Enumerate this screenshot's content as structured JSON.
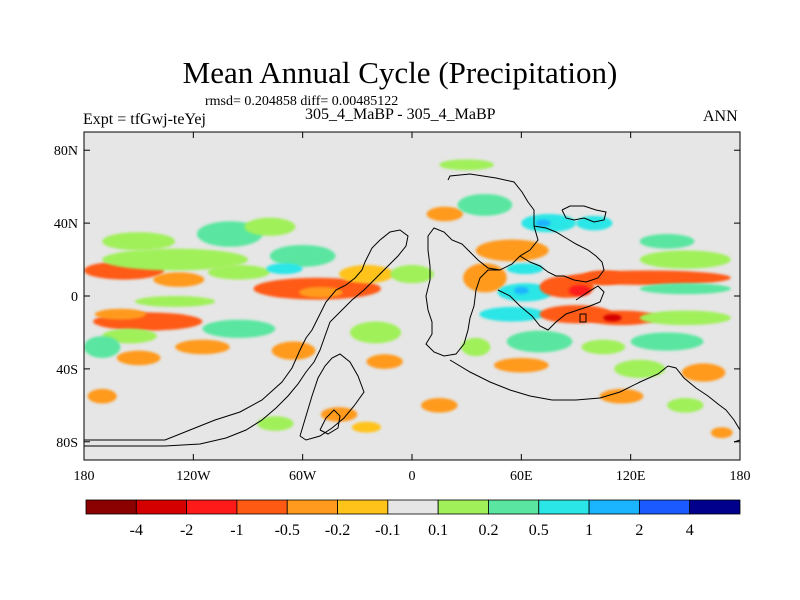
{
  "header": {
    "title": "Mean Annual Cycle (Precipitation)",
    "stats": "rmsd= 0.204858 diff= 0.00485122",
    "expt": "Expt = tfGwj-teYej",
    "case": "305_4_MaBP - 305_4_MaBP",
    "season": "ANN"
  },
  "chart_data": {
    "type": "heatmap",
    "title": "Mean Annual Cycle (Precipitation)",
    "xlabel": "",
    "ylabel": "",
    "xlim": [
      -180,
      180
    ],
    "ylim": [
      -90,
      90
    ],
    "x_ticks": [
      {
        "value": -180,
        "label": "180"
      },
      {
        "value": -120,
        "label": "120W"
      },
      {
        "value": -60,
        "label": "60W"
      },
      {
        "value": 0,
        "label": "0"
      },
      {
        "value": 60,
        "label": "60E"
      },
      {
        "value": 120,
        "label": "120E"
      },
      {
        "value": 180,
        "label": "180"
      }
    ],
    "y_ticks": [
      {
        "value": 80,
        "label": "80N"
      },
      {
        "value": 40,
        "label": "40N"
      },
      {
        "value": 0,
        "label": "0"
      },
      {
        "value": -40,
        "label": "40S"
      },
      {
        "value": -80,
        "label": "80S"
      }
    ],
    "colorbar": {
      "labels": [
        "-4",
        "-2",
        "-1",
        "-0.5",
        "-0.2",
        "-0.1",
        "0.1",
        "0.2",
        "0.5",
        "1",
        "2",
        "4"
      ],
      "colors": [
        "#8b0000",
        "#d40000",
        "#ff1a1a",
        "#ff5a14",
        "#ff9a1e",
        "#ffc31a",
        "#e6e6e6",
        "#a0f05a",
        "#5ae6a0",
        "#2ae6e6",
        "#1ab4ff",
        "#1a5aff",
        "#00008c"
      ]
    },
    "background_color": "#e6e6e6",
    "regions": [
      {
        "lon": -158,
        "lat": 14,
        "rlon": 22,
        "rlat": 5,
        "level": 3
      },
      {
        "lon": -128,
        "lat": 9,
        "rlon": 14,
        "rlat": 4,
        "level": 4
      },
      {
        "lon": -95,
        "lat": 13,
        "rlon": 17,
        "rlat": 4,
        "level": 7
      },
      {
        "lon": -130,
        "lat": 20,
        "rlon": 40,
        "rlat": 6,
        "level": 7
      },
      {
        "lon": -60,
        "lat": 22,
        "rlon": 18,
        "rlat": 6,
        "level": 8
      },
      {
        "lon": -70,
        "lat": 15,
        "rlon": 10,
        "rlat": 3,
        "level": 9
      },
      {
        "lon": -52,
        "lat": 4,
        "rlon": 35,
        "rlat": 6,
        "level": 3
      },
      {
        "lon": -50,
        "lat": 2,
        "rlon": 12,
        "rlat": 3,
        "level": 4
      },
      {
        "lon": -25,
        "lat": 12,
        "rlon": 15,
        "rlat": 5,
        "level": 5
      },
      {
        "lon": -100,
        "lat": 34,
        "rlon": 18,
        "rlat": 7,
        "level": 8
      },
      {
        "lon": -150,
        "lat": 30,
        "rlon": 20,
        "rlat": 5,
        "level": 7
      },
      {
        "lon": -78,
        "lat": 38,
        "rlon": 14,
        "rlat": 5,
        "level": 7
      },
      {
        "lon": -145,
        "lat": -14,
        "rlon": 30,
        "rlat": 5,
        "level": 3
      },
      {
        "lon": -160,
        "lat": -10,
        "rlon": 14,
        "rlat": 3,
        "level": 4
      },
      {
        "lon": -130,
        "lat": -3,
        "rlon": 22,
        "rlat": 3,
        "level": 7
      },
      {
        "lon": -155,
        "lat": -22,
        "rlon": 15,
        "rlat": 4,
        "level": 7
      },
      {
        "lon": -115,
        "lat": -28,
        "rlon": 15,
        "rlat": 4,
        "level": 4
      },
      {
        "lon": -95,
        "lat": -18,
        "rlon": 20,
        "rlat": 5,
        "level": 8
      },
      {
        "lon": -150,
        "lat": -34,
        "rlon": 12,
        "rlat": 4,
        "level": 4
      },
      {
        "lon": -170,
        "lat": -28,
        "rlon": 10,
        "rlat": 6,
        "level": 8
      },
      {
        "lon": -65,
        "lat": -30,
        "rlon": 12,
        "rlat": 5,
        "level": 4
      },
      {
        "lon": -20,
        "lat": -20,
        "rlon": 14,
        "rlat": 6,
        "level": 7
      },
      {
        "lon": -15,
        "lat": -36,
        "rlon": 10,
        "rlat": 4,
        "level": 4
      },
      {
        "lon": -40,
        "lat": -65,
        "rlon": 10,
        "rlat": 4,
        "level": 4
      },
      {
        "lon": -75,
        "lat": -70,
        "rlon": 10,
        "rlat": 4,
        "level": 7
      },
      {
        "lon": -25,
        "lat": -72,
        "rlon": 8,
        "rlat": 3,
        "level": 5
      },
      {
        "lon": 0,
        "lat": 12,
        "rlon": 12,
        "rlat": 5,
        "level": 7
      },
      {
        "lon": 18,
        "lat": 45,
        "rlon": 10,
        "rlat": 4,
        "level": 4
      },
      {
        "lon": 40,
        "lat": 50,
        "rlon": 15,
        "rlat": 6,
        "level": 8
      },
      {
        "lon": 30,
        "lat": 72,
        "rlon": 15,
        "rlat": 3,
        "level": 7
      },
      {
        "lon": 55,
        "lat": 25,
        "rlon": 20,
        "rlat": 6,
        "level": 4
      },
      {
        "lon": 40,
        "lat": 10,
        "rlon": 12,
        "rlat": 8,
        "level": 4
      },
      {
        "lon": 62,
        "lat": 15,
        "rlon": 10,
        "rlat": 3,
        "level": 9
      },
      {
        "lon": 62,
        "lat": 2,
        "rlon": 15,
        "rlat": 5,
        "level": 9
      },
      {
        "lon": 60,
        "lat": 3,
        "rlon": 4,
        "rlat": 2,
        "level": 10
      },
      {
        "lon": 85,
        "lat": 5,
        "rlon": 15,
        "rlat": 6,
        "level": 3
      },
      {
        "lon": 92,
        "lat": 3,
        "rlon": 6,
        "rlat": 3,
        "level": 2
      },
      {
        "lon": 105,
        "lat": 10,
        "rlon": 12,
        "rlat": 4,
        "level": 3
      },
      {
        "lon": 130,
        "lat": 10,
        "rlon": 45,
        "rlat": 4,
        "level": 3
      },
      {
        "lon": 150,
        "lat": 20,
        "rlon": 25,
        "rlat": 5,
        "level": 7
      },
      {
        "lon": 150,
        "lat": 4,
        "rlon": 25,
        "rlat": 3,
        "level": 8
      },
      {
        "lon": 140,
        "lat": 30,
        "rlon": 15,
        "rlat": 4,
        "level": 8
      },
      {
        "lon": 75,
        "lat": 40,
        "rlon": 15,
        "rlat": 5,
        "level": 9
      },
      {
        "lon": 72,
        "lat": 40,
        "rlon": 4,
        "rlat": 2,
        "level": 10
      },
      {
        "lon": 100,
        "lat": 40,
        "rlon": 10,
        "rlat": 4,
        "level": 9
      },
      {
        "lon": 55,
        "lat": -10,
        "rlon": 18,
        "rlat": 4,
        "level": 9
      },
      {
        "lon": 90,
        "lat": -10,
        "rlon": 20,
        "rlat": 5,
        "level": 3
      },
      {
        "lon": 115,
        "lat": -12,
        "rlon": 20,
        "rlat": 4,
        "level": 3
      },
      {
        "lon": 110,
        "lat": -12,
        "rlon": 5,
        "rlat": 2,
        "level": 1
      },
      {
        "lon": 150,
        "lat": -12,
        "rlon": 25,
        "rlat": 4,
        "level": 7
      },
      {
        "lon": 70,
        "lat": -25,
        "rlon": 18,
        "rlat": 6,
        "level": 8
      },
      {
        "lon": 140,
        "lat": -25,
        "rlon": 20,
        "rlat": 5,
        "level": 8
      },
      {
        "lon": 105,
        "lat": -28,
        "rlon": 12,
        "rlat": 4,
        "level": 7
      },
      {
        "lon": 35,
        "lat": -28,
        "rlon": 8,
        "rlat": 5,
        "level": 7
      },
      {
        "lon": 60,
        "lat": -38,
        "rlon": 15,
        "rlat": 4,
        "level": 4
      },
      {
        "lon": 125,
        "lat": -40,
        "rlon": 14,
        "rlat": 5,
        "level": 7
      },
      {
        "lon": 160,
        "lat": -42,
        "rlon": 12,
        "rlat": 5,
        "level": 4
      },
      {
        "lon": 115,
        "lat": -55,
        "rlon": 12,
        "rlat": 4,
        "level": 4
      },
      {
        "lon": 15,
        "lat": -60,
        "rlon": 10,
        "rlat": 4,
        "level": 4
      },
      {
        "lon": 150,
        "lat": -60,
        "rlon": 10,
        "rlat": 4,
        "level": 7
      },
      {
        "lon": 170,
        "lat": -75,
        "rlon": 6,
        "rlat": 3,
        "level": 4
      },
      {
        "lon": -170,
        "lat": -55,
        "rlon": 8,
        "rlat": 4,
        "level": 4
      }
    ]
  }
}
